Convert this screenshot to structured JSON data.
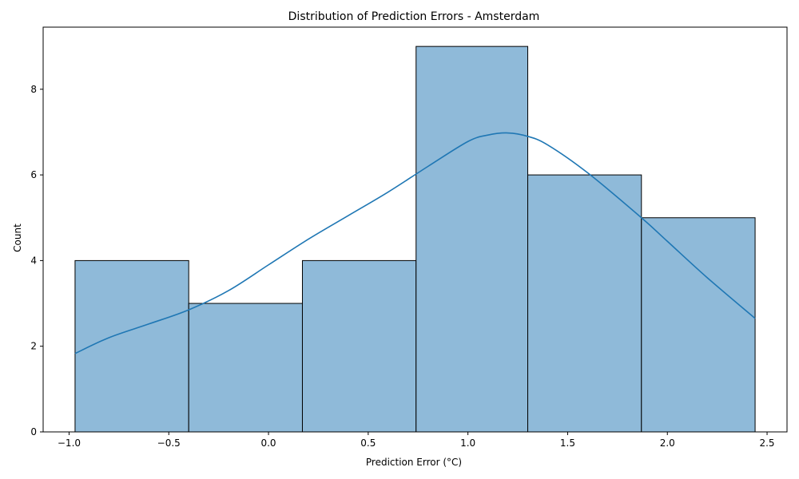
{
  "chart_data": {
    "type": "bar",
    "subtype": "histogram-with-kde",
    "title": "Distribution of Prediction Errors - Amsterdam",
    "xlabel": "Prediction Error (°C)",
    "ylabel": "Count",
    "xlim": [
      -1.13,
      2.6
    ],
    "ylim": [
      0,
      9.45
    ],
    "xticks": [
      -1.0,
      -0.5,
      0.0,
      0.5,
      1.0,
      1.5,
      2.0,
      2.5
    ],
    "xtick_labels": [
      "−1.0",
      "−0.5",
      "0.0",
      "0.5",
      "1.0",
      "1.5",
      "2.0",
      "2.5"
    ],
    "yticks": [
      0,
      2,
      4,
      6,
      8
    ],
    "ytick_labels": [
      "0",
      "2",
      "4",
      "6",
      "8"
    ],
    "bins": [
      {
        "start": -0.97,
        "end": -0.4,
        "count": 4
      },
      {
        "start": -0.4,
        "end": 0.17,
        "count": 3
      },
      {
        "start": 0.17,
        "end": 0.74,
        "count": 4
      },
      {
        "start": 0.74,
        "end": 1.3,
        "count": 9
      },
      {
        "start": 1.3,
        "end": 1.87,
        "count": 6
      },
      {
        "start": 1.87,
        "end": 2.44,
        "count": 5
      }
    ],
    "kde": {
      "x": [
        -0.97,
        -0.8,
        -0.6,
        -0.4,
        -0.2,
        0.0,
        0.2,
        0.4,
        0.6,
        0.8,
        1.0,
        1.1,
        1.2,
        1.3,
        1.4,
        1.6,
        1.87,
        2.0,
        2.2,
        2.44
      ],
      "y": [
        1.83,
        2.2,
        2.52,
        2.85,
        3.3,
        3.9,
        4.5,
        5.05,
        5.6,
        6.2,
        6.78,
        6.93,
        6.98,
        6.9,
        6.7,
        6.05,
        5.0,
        4.45,
        3.6,
        2.65
      ]
    },
    "bar_color": "#8fbad9",
    "bar_edge_color": "#000000",
    "line_color": "#1f77b4",
    "grid": false,
    "legend": "none"
  }
}
